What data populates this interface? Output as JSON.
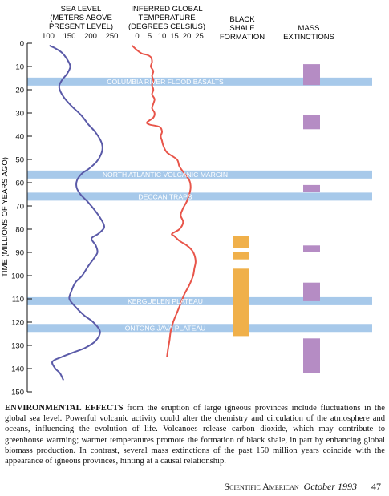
{
  "headers": {
    "sea_level": [
      "SEA LEVEL",
      "(METERS ABOVE",
      "PRESENT LEVEL)"
    ],
    "temperature": [
      "INFERRED GLOBAL",
      "TEMPERATURE",
      "(DEGREES CELSIUS)"
    ],
    "black_shale": [
      "BLACK",
      "SHALE",
      "FORMATION"
    ],
    "mass_extinctions": [
      "MASS",
      "EXTINCTIONS"
    ]
  },
  "y_axis_label": "TIME (MILLIONS OF YEARS AGO)",
  "caption": {
    "lead": "ENVIRONMENTAL EFFECTS",
    "text": " from the eruption of large igneous provinces include fluctuations in the global sea level. Powerful volcanic activity could alter the chemistry and circulation of the atmosphere and oceans, influencing the evolution of life. Volcanoes release carbon dioxide, which may contribute to greenhouse warming; warmer temperatures promote the formation of black shale, in part by enhancing global biomass production. In contrast, several mass extinctions of the past 150 million years coincide with the appearance of igneous provinces, hinting at a causal relationship."
  },
  "footer": {
    "publication": "Scientific American",
    "date": "October 1993",
    "page": "47"
  },
  "colors": {
    "sea": "#5a5aa8",
    "temp": "#e8554a",
    "band": "#a7c9ea",
    "shale": "#f0b04a",
    "extinction": "#b58cc4",
    "axis": "#111111"
  },
  "chart_data": {
    "type": "line",
    "ylabel": "TIME (MILLIONS OF YEARS AGO)",
    "y_axis": {
      "range": [
        0,
        150
      ],
      "ticks": [
        0,
        10,
        20,
        30,
        40,
        50,
        60,
        70,
        80,
        90,
        100,
        110,
        120,
        130,
        140,
        150
      ]
    },
    "sea_axis": {
      "ticks": [
        100,
        150,
        200,
        250
      ]
    },
    "temp_axis": {
      "ticks": [
        0,
        5,
        10,
        15,
        20,
        25
      ]
    },
    "sea_level": {
      "name": "SEA LEVEL",
      "points": [
        [
          103,
          1
        ],
        [
          115,
          2
        ],
        [
          132,
          4
        ],
        [
          145,
          7
        ],
        [
          152,
          10
        ],
        [
          145,
          13
        ],
        [
          132,
          16
        ],
        [
          126,
          19
        ],
        [
          136,
          23
        ],
        [
          155,
          27
        ],
        [
          178,
          31
        ],
        [
          195,
          35
        ],
        [
          210,
          38
        ],
        [
          224,
          42
        ],
        [
          228,
          45
        ],
        [
          224,
          48
        ],
        [
          214,
          51
        ],
        [
          196,
          54
        ],
        [
          180,
          56
        ],
        [
          168,
          59
        ],
        [
          167,
          62
        ],
        [
          176,
          65
        ],
        [
          192,
          68
        ],
        [
          206,
          71
        ],
        [
          222,
          75
        ],
        [
          232,
          79
        ],
        [
          218,
          82
        ],
        [
          202,
          84
        ],
        [
          212,
          87
        ],
        [
          216,
          90
        ],
        [
          206,
          93
        ],
        [
          194,
          96
        ],
        [
          180,
          100
        ],
        [
          164,
          103
        ],
        [
          154,
          107
        ],
        [
          150,
          110
        ],
        [
          162,
          113
        ],
        [
          184,
          117
        ],
        [
          206,
          120
        ],
        [
          222,
          124
        ],
        [
          212,
          128
        ],
        [
          188,
          131
        ],
        [
          160,
          133
        ],
        [
          132,
          135
        ],
        [
          110,
          137
        ],
        [
          117,
          140
        ],
        [
          128,
          142
        ],
        [
          136,
          145
        ]
      ]
    },
    "temperature": {
      "name": "INFERRED GLOBAL TEMPERATURE",
      "points": [
        [
          -2,
          1
        ],
        [
          0,
          3
        ],
        [
          2,
          4.5
        ],
        [
          4,
          5
        ],
        [
          5.5,
          6
        ],
        [
          6,
          8
        ],
        [
          5.5,
          10
        ],
        [
          6.5,
          12
        ],
        [
          6,
          14
        ],
        [
          6.5,
          16
        ],
        [
          6,
          18
        ],
        [
          6.5,
          20
        ],
        [
          6,
          22
        ],
        [
          7,
          24
        ],
        [
          6.5,
          26
        ],
        [
          6,
          28
        ],
        [
          7,
          30
        ],
        [
          6.5,
          32
        ],
        [
          4,
          34
        ],
        [
          5,
          35
        ],
        [
          9,
          36
        ],
        [
          10,
          38
        ],
        [
          9.5,
          40
        ],
        [
          10,
          42
        ],
        [
          10.5,
          44
        ],
        [
          12,
          47
        ],
        [
          16,
          50
        ],
        [
          17,
          53
        ],
        [
          19,
          56
        ],
        [
          21,
          59
        ],
        [
          21.5,
          62
        ],
        [
          21,
          65
        ],
        [
          20,
          68
        ],
        [
          18.5,
          71
        ],
        [
          17.5,
          74
        ],
        [
          18.5,
          77
        ],
        [
          17,
          80
        ],
        [
          14,
          82
        ],
        [
          15,
          83
        ],
        [
          17,
          85
        ],
        [
          20,
          87
        ],
        [
          22,
          89
        ],
        [
          23,
          91
        ],
        [
          23.5,
          94
        ],
        [
          23,
          97
        ],
        [
          22.5,
          100
        ],
        [
          21,
          104
        ],
        [
          19,
          108
        ],
        [
          17.5,
          112
        ],
        [
          16,
          116
        ],
        [
          14.5,
          120
        ],
        [
          13.5,
          124
        ],
        [
          13,
          128
        ],
        [
          12.5,
          131
        ],
        [
          12,
          135
        ]
      ]
    },
    "volcanic_events": [
      {
        "label": "COLUMBIA RIVER   FLOOD BASALTS",
        "age": 16.5
      },
      {
        "label": "NORTH ATLANTIC   VOLCANIC MARGIN",
        "age": 56.5
      },
      {
        "label": "DECCAN   TRAPS",
        "age": 66
      },
      {
        "label": "KERGUELEN PLATEAU",
        "age": 111
      },
      {
        "label": "ONTONG JAVA PLATEAU",
        "age": 122.5
      }
    ],
    "black_shale_intervals": [
      [
        83,
        88
      ],
      [
        90,
        93
      ],
      [
        97,
        126
      ]
    ],
    "mass_extinction_intervals": [
      [
        9,
        18
      ],
      [
        31,
        37
      ],
      [
        61,
        64
      ],
      [
        87,
        90
      ],
      [
        103,
        111
      ],
      [
        127,
        142
      ]
    ]
  }
}
